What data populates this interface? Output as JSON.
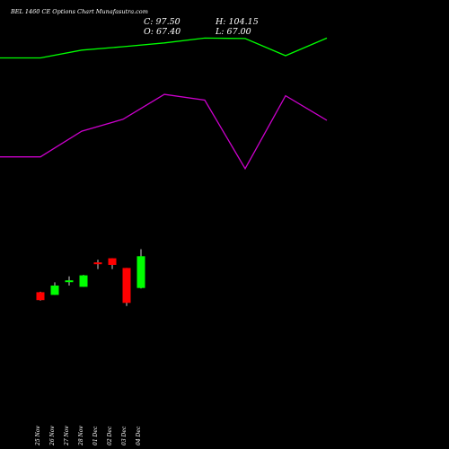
{
  "header": {
    "title": "BEL 1460 CE Options Chart Munafasutra.com",
    "close_text": "C: 97.50",
    "open_text": "O: 67.40",
    "high_text": "H: 104.15",
    "low_text": "L: 67.00"
  },
  "colors": {
    "background": "#000000",
    "text": "#ffffff",
    "up_candle": "#00ff00",
    "down_candle": "#ff0000",
    "upper_band": "#00ff00",
    "lower_band": "#cc00cc",
    "wick": "#ffffff"
  },
  "chart_data": {
    "type": "candlestick",
    "categories": [
      "25 Nov",
      "26 Nov",
      "27 Nov",
      "28 Nov",
      "01 Dec",
      "02 Dec",
      "03 Dec",
      "04 Dec"
    ],
    "candles": [
      {
        "date": "25 Nov",
        "open": 63.4,
        "high": 63.8,
        "low": 55.4,
        "close": 55.9
      },
      {
        "date": "26 Nov",
        "open": 60.9,
        "high": 72.8,
        "low": 60.9,
        "close": 69.7
      },
      {
        "date": "27 Nov",
        "open": 73.8,
        "high": 78.4,
        "low": 69.7,
        "close": 73.8
      },
      {
        "date": "28 Nov",
        "open": 68.5,
        "high": 79.8,
        "low": 68.5,
        "close": 79.4
      },
      {
        "date": "01 Dec",
        "open": 91.6,
        "high": 94.1,
        "low": 85.3,
        "close": 89.9
      },
      {
        "date": "02 Dec",
        "open": 95.5,
        "high": 95.5,
        "low": 85.3,
        "close": 89.2
      },
      {
        "date": "03 Dec",
        "open": 86.4,
        "high": 86.4,
        "low": 50.4,
        "close": 53.3
      },
      {
        "date": "04 Dec",
        "open": 67.4,
        "high": 104.15,
        "low": 67.0,
        "close": 97.5
      }
    ],
    "upper_band": [
      {
        "x": "24 Nov",
        "y": 285.2
      },
      {
        "x": "25 Nov",
        "y": 285.2
      },
      {
        "x": "26 Nov",
        "y": 292.6
      },
      {
        "x": "27 Nov",
        "y": 295.8
      },
      {
        "x": "28 Nov",
        "y": 299.4
      },
      {
        "x": "01 Dec",
        "y": 304.0
      },
      {
        "x": "02 Dec",
        "y": 303.5
      },
      {
        "x": "03 Dec",
        "y": 287.3
      },
      {
        "x": "04 Dec",
        "y": 304.0
      }
    ],
    "lower_band": [
      {
        "x": "24 Nov",
        "y": 191.5
      },
      {
        "x": "25 Nov",
        "y": 191.5
      },
      {
        "x": "26 Nov",
        "y": 215.8
      },
      {
        "x": "27 Nov",
        "y": 227.1
      },
      {
        "x": "28 Nov",
        "y": 250.7
      },
      {
        "x": "01 Dec",
        "y": 245.2
      },
      {
        "x": "02 Dec",
        "y": 180.4
      },
      {
        "x": "03 Dec",
        "y": 249.4
      },
      {
        "x": "04 Dec",
        "y": 226.1
      }
    ],
    "ylim": [
      0,
      340
    ]
  }
}
